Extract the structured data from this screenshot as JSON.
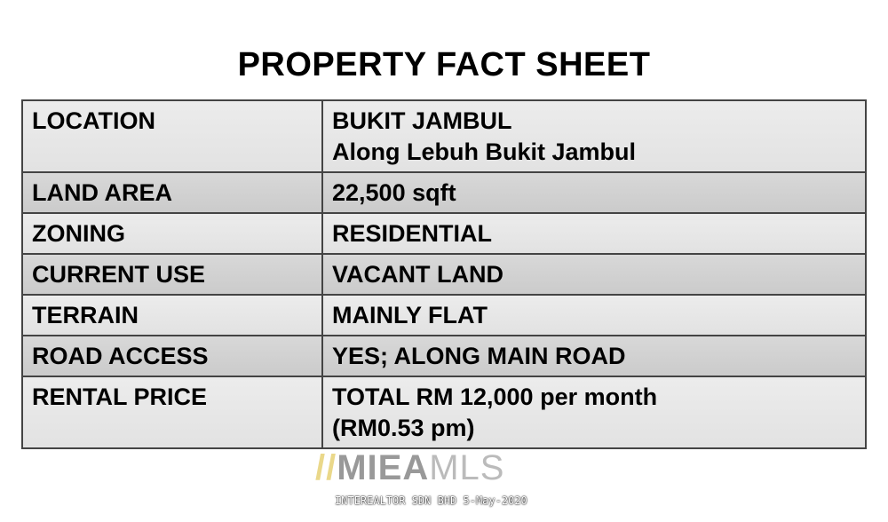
{
  "title": "PROPERTY FACT SHEET",
  "rows": [
    {
      "label": "LOCATION",
      "value": [
        "BUKIT JAMBUL",
        "Along Lebuh Bukit Jambul"
      ]
    },
    {
      "label": "LAND AREA",
      "value": [
        "22,500 sqft"
      ]
    },
    {
      "label": "ZONING",
      "value": [
        "RESIDENTIAL"
      ]
    },
    {
      "label": "CURRENT USE",
      "value": [
        "VACANT LAND"
      ]
    },
    {
      "label": "TERRAIN",
      "value": [
        "MAINLY FLAT"
      ]
    },
    {
      "label": "ROAD ACCESS",
      "value": [
        "YES; ALONG MAIN ROAD"
      ]
    },
    {
      "label": "RENTAL PRICE",
      "value": [
        "TOTAL RM 12,000 per month",
        "(RM0.53 pm)"
      ]
    }
  ],
  "watermark": {
    "logo": "MIEAMLS",
    "text": "INTEREALTOR SDN BHD 5-May-2020"
  },
  "colors": {
    "row_light": "#e6e6e6",
    "row_dark": "#cfcfcf",
    "border": "#444444"
  }
}
